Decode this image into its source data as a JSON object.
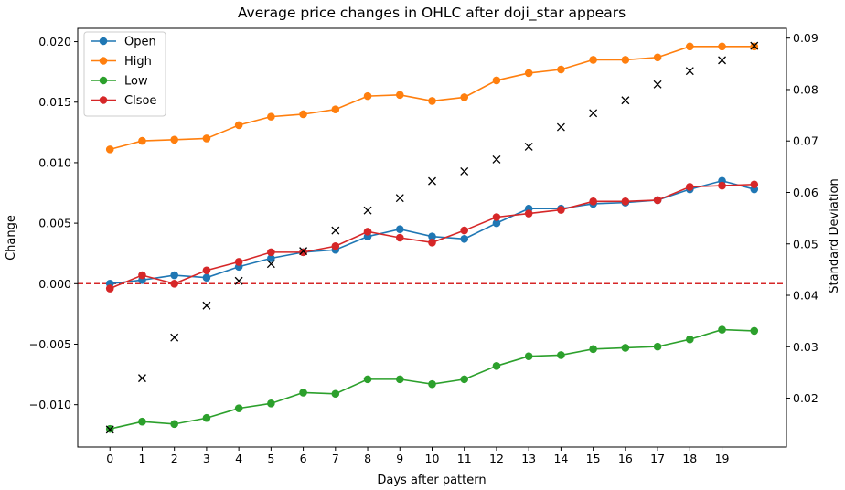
{
  "chart_data": {
    "type": "line",
    "title": "Average price changes in OHLC after doji_star appears",
    "xlabel": "Days after pattern",
    "ylabel": "Change",
    "y2label": "Standard Deviation",
    "x": [
      0,
      1,
      2,
      3,
      4,
      5,
      6,
      7,
      8,
      9,
      10,
      11,
      12,
      13,
      14,
      15,
      16,
      17,
      18,
      19,
      20
    ],
    "xticks": [
      "0",
      "1",
      "2",
      "3",
      "4",
      "5",
      "6",
      "7",
      "8",
      "9",
      "10",
      "11",
      "12",
      "13",
      "14",
      "15",
      "16",
      "17",
      "18",
      "19"
    ],
    "xlim": [
      -1,
      21
    ],
    "ylim": [
      -0.0135,
      0.0211
    ],
    "yticks": [
      "-0.010",
      "-0.005",
      "0.000",
      "0.005",
      "0.010",
      "0.015",
      "0.020"
    ],
    "y2lim": [
      0.0105,
      0.0919
    ],
    "y2ticks": [
      "0.02",
      "0.03",
      "0.04",
      "0.05",
      "0.06",
      "0.07",
      "0.08",
      "0.09"
    ],
    "zero_line": {
      "y": 0.0,
      "color": "#d62728",
      "style": "dashed"
    },
    "legend_position": "upper-left",
    "series": [
      {
        "name": "Open",
        "color": "#1f77b4",
        "values": [
          0.0,
          0.0003,
          0.0007,
          0.0005,
          0.0014,
          0.0021,
          0.0026,
          0.0028,
          0.0039,
          0.0045,
          0.0039,
          0.0037,
          0.005,
          0.0062,
          0.0062,
          0.0066,
          0.0067,
          0.0069,
          0.0078,
          0.0085,
          0.0078
        ]
      },
      {
        "name": "High",
        "color": "#ff7f0e",
        "values": [
          0.0111,
          0.0118,
          0.0119,
          0.012,
          0.0131,
          0.0138,
          0.014,
          0.0144,
          0.0155,
          0.0156,
          0.0151,
          0.0154,
          0.0168,
          0.0174,
          0.0177,
          0.0185,
          0.0185,
          0.0187,
          0.0196,
          0.0196,
          0.0196
        ]
      },
      {
        "name": "Low",
        "color": "#2ca02c",
        "values": [
          -0.012,
          -0.0114,
          -0.0116,
          -0.0111,
          -0.0103,
          -0.0099,
          -0.009,
          -0.0091,
          -0.0079,
          -0.0079,
          -0.0083,
          -0.0079,
          -0.0068,
          -0.006,
          -0.0059,
          -0.0054,
          -0.0053,
          -0.0052,
          -0.0046,
          -0.0038,
          -0.0039
        ]
      },
      {
        "name": "Clsoe",
        "color": "#d62728",
        "values": [
          -0.0004,
          0.0007,
          0.0,
          0.0011,
          0.0018,
          0.0026,
          0.0026,
          0.0031,
          0.0043,
          0.0038,
          0.0034,
          0.0044,
          0.0055,
          0.0058,
          0.0061,
          0.0068,
          0.0068,
          0.0069,
          0.008,
          0.0081,
          0.0082
        ]
      }
    ],
    "std_series": {
      "axis": "right",
      "marker": "x",
      "color": "#000000",
      "values": [
        0.0139,
        0.0239,
        0.0318,
        0.038,
        0.0428,
        0.0461,
        0.0486,
        0.0526,
        0.0565,
        0.0589,
        0.0622,
        0.0641,
        0.0664,
        0.0689,
        0.0727,
        0.0754,
        0.0779,
        0.081,
        0.0836,
        0.0857,
        0.0885
      ]
    }
  }
}
